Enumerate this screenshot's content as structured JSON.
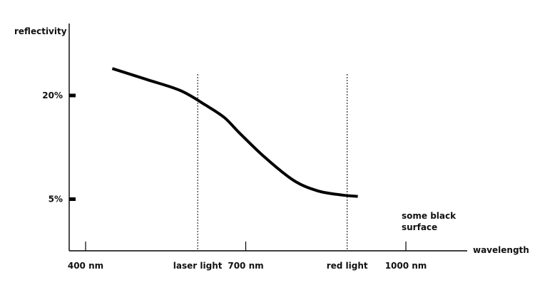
{
  "colors": {
    "line": "#000000",
    "axis": "#000000",
    "background": "#ffffff"
  },
  "chart_data": {
    "type": "line",
    "title": "",
    "xlabel": "wavelength",
    "ylabel": "reflectivity",
    "x_ticks": [
      {
        "value": 400,
        "label": "400 nm"
      },
      {
        "value": 700,
        "label": "700 nm"
      },
      {
        "value": 1000,
        "label": "1000 nm"
      }
    ],
    "y_ticks": [
      {
        "value": 20,
        "label": "20%"
      },
      {
        "value": 5,
        "label": "5%"
      }
    ],
    "reference_lines": [
      {
        "x": 610,
        "label": "laser light",
        "style": "dotted"
      },
      {
        "x": 890,
        "label": "red light",
        "style": "dotted"
      }
    ],
    "series": [
      {
        "label": "some black surface",
        "points": [
          {
            "x": 450,
            "y": 23.9
          },
          {
            "x": 515,
            "y": 22.3
          },
          {
            "x": 578,
            "y": 20.7
          },
          {
            "x": 625,
            "y": 18.6
          },
          {
            "x": 660,
            "y": 16.8
          },
          {
            "x": 688,
            "y": 14.6
          },
          {
            "x": 735,
            "y": 11.1
          },
          {
            "x": 790,
            "y": 7.7
          },
          {
            "x": 835,
            "y": 6.2
          },
          {
            "x": 880,
            "y": 5.6
          },
          {
            "x": 910,
            "y": 5.4
          }
        ]
      }
    ]
  }
}
